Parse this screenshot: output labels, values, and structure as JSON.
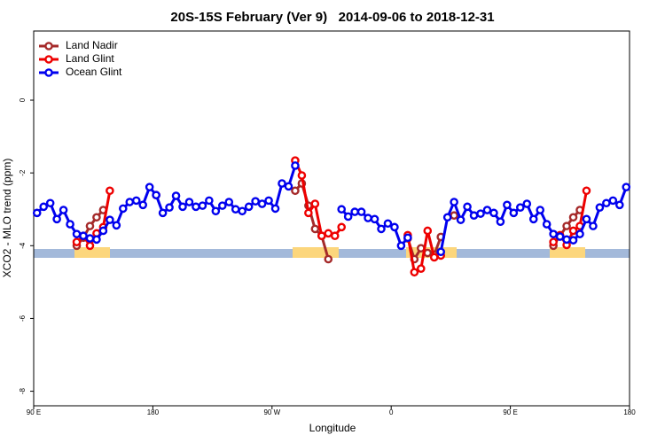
{
  "chart_data": {
    "type": "line",
    "title": "20S-15S February (Ver 9)   2014-09-06 to 2018-12-31",
    "x_label": "Longitude",
    "y_label": "XCO2 - MLO trend (ppm)",
    "xlim": [
      90,
      540
    ],
    "xticks": [
      {
        "value": 90,
        "label": "90 E"
      },
      180,
      {
        "value": 270,
        "label": "90 W"
      },
      {
        "value": 360,
        "label": "0"
      },
      {
        "value": 450,
        "label": "90 E"
      },
      {
        "value": 540,
        "label": "180"
      }
    ],
    "ylim": [
      -8.4,
      1.9
    ],
    "yticks": [
      0,
      -2,
      -4,
      -6,
      -8
    ],
    "legend": "top-left",
    "x": [
      92.5,
      97.5,
      102.5,
      107.5,
      112.5,
      117.5,
      122.5,
      127.5,
      132.5,
      137.5,
      142.5,
      147.5,
      152.5,
      157.5,
      162.5,
      167.5,
      172.5,
      177.5,
      182.5,
      187.5,
      192.5,
      197.5,
      202.5,
      207.5,
      212.5,
      217.5,
      222.5,
      227.5,
      232.5,
      237.5,
      242.5,
      247.5,
      252.5,
      257.5,
      262.5,
      267.5,
      272.5,
      277.5,
      282.5,
      287.5,
      292.5,
      297.5,
      302.5,
      307.5,
      312.5,
      317.5,
      322.5,
      327.5,
      332.5,
      337.5,
      342.5,
      347.5,
      352.5,
      357.5,
      362.5,
      367.5,
      372.5,
      377.5,
      382.5,
      387.5,
      392.5,
      397.5,
      402.5,
      407.5,
      412.5,
      417.5,
      422.5,
      427.5,
      432.5,
      437.5,
      442.5,
      447.5,
      452.5,
      457.5,
      462.5,
      467.5,
      472.5,
      477.5,
      482.5,
      487.5,
      492.5,
      497.5,
      502.5,
      507.5,
      512.5,
      517.5,
      522.5,
      527.5,
      532.5,
      537.5
    ],
    "series": [
      {
        "name": "Land Nadir",
        "color": "#a52a2a",
        "values": [
          null,
          null,
          null,
          null,
          null,
          null,
          -4.0,
          -3.78,
          -3.46,
          -3.22,
          -3.02,
          null,
          null,
          null,
          null,
          null,
          null,
          null,
          null,
          null,
          null,
          null,
          null,
          null,
          null,
          null,
          null,
          null,
          null,
          null,
          null,
          null,
          null,
          null,
          null,
          null,
          null,
          null,
          null,
          -2.49,
          -2.29,
          -2.9,
          -3.54,
          -3.73,
          -4.37,
          null,
          null,
          null,
          null,
          null,
          null,
          null,
          null,
          null,
          null,
          null,
          -3.8,
          -4.37,
          -4.07,
          -4.2,
          -4.25,
          -3.76,
          null,
          -3.17,
          null,
          null,
          null,
          null,
          null,
          null,
          null,
          null,
          null,
          null,
          null,
          null,
          null,
          null,
          -4.0,
          -3.73,
          -3.46,
          -3.22,
          -3.02,
          null,
          null,
          null,
          null,
          null,
          null,
          null
        ]
      },
      {
        "name": "Land Glint",
        "color": "#ee0000",
        "values": [
          null,
          null,
          null,
          null,
          null,
          null,
          -3.9,
          -3.73,
          -4.0,
          -3.66,
          -3.49,
          -2.49,
          null,
          null,
          null,
          null,
          null,
          null,
          -2.61,
          null,
          null,
          null,
          null,
          null,
          null,
          null,
          null,
          null,
          null,
          null,
          null,
          null,
          null,
          null,
          null,
          null,
          null,
          null,
          null,
          -1.66,
          -2.07,
          -3.1,
          -2.85,
          -3.73,
          -3.66,
          -3.73,
          -3.49,
          null,
          null,
          null,
          null,
          null,
          null,
          null,
          null,
          null,
          -3.71,
          -4.73,
          -4.63,
          -3.59,
          -4.32,
          -4.27,
          null,
          null,
          null,
          null,
          null,
          null,
          null,
          null,
          null,
          null,
          null,
          null,
          null,
          null,
          null,
          null,
          -3.9,
          -3.71,
          -3.98,
          -3.59,
          -3.46,
          -2.49,
          null,
          null,
          null,
          null,
          null,
          null
        ]
      },
      {
        "name": "Ocean Glint",
        "color": "#0000ee",
        "values": [
          -3.1,
          -2.93,
          -2.83,
          -3.27,
          -3.02,
          -3.41,
          -3.68,
          -3.73,
          -3.8,
          -3.83,
          -3.59,
          -3.29,
          -3.44,
          -2.98,
          -2.8,
          -2.76,
          -2.88,
          -2.39,
          -2.61,
          -3.1,
          -2.95,
          -2.63,
          -2.93,
          -2.8,
          -2.93,
          -2.9,
          -2.76,
          -3.05,
          -2.9,
          -2.8,
          -3.0,
          -3.05,
          -2.93,
          -2.78,
          -2.85,
          -2.76,
          -2.98,
          -2.29,
          -2.37,
          -1.8,
          null,
          null,
          null,
          null,
          null,
          null,
          -3.0,
          -3.2,
          -3.07,
          -3.07,
          -3.24,
          -3.27,
          -3.54,
          -3.39,
          -3.49,
          -4.0,
          -3.78,
          null,
          null,
          null,
          null,
          -4.17,
          -3.22,
          -2.8,
          -3.29,
          -2.93,
          -3.17,
          -3.12,
          -3.02,
          -3.1,
          -3.34,
          -2.88,
          -3.1,
          -2.95,
          -2.85,
          -3.27,
          -3.02,
          -3.41,
          -3.68,
          -3.75,
          -3.83,
          -3.85,
          -3.68,
          -3.27,
          -3.46,
          -2.95,
          -2.83,
          -2.76,
          -2.88,
          -2.39
        ]
      }
    ]
  }
}
